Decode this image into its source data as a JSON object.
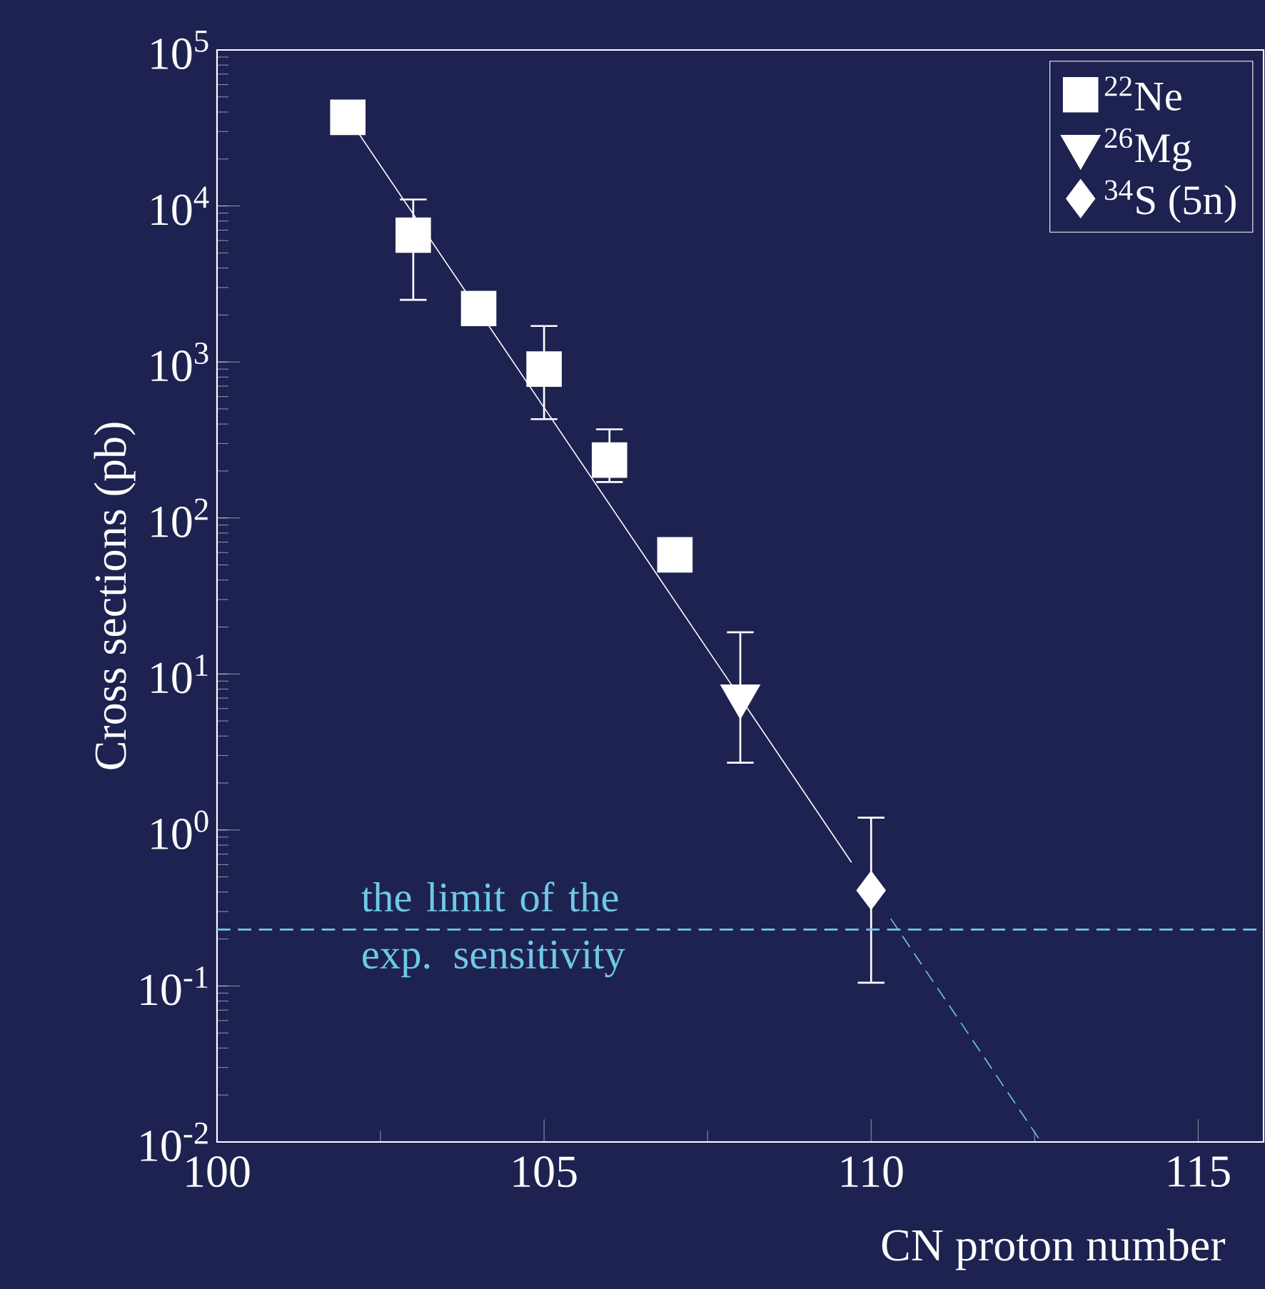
{
  "chart_data": {
    "type": "scatter",
    "xlabel": "CN proton number",
    "ylabel": "Cross sections  (pb)",
    "log": "y",
    "xlim": [
      100,
      116
    ],
    "xticks": [
      100,
      105,
      110,
      115
    ],
    "ylim": [
      0.01,
      100000
    ],
    "yticks": [
      {
        "value": 0.01,
        "label": "10$^{-2}$"
      },
      {
        "value": 0.1,
        "label": "10$^{-1}$"
      },
      {
        "value": 1,
        "label": "10$^{0}$"
      },
      {
        "value": 10,
        "label": "10$^{1}$"
      },
      {
        "value": 100,
        "label": "10$^{2}$"
      },
      {
        "value": 1000,
        "label": "10$^{3}$"
      },
      {
        "value": 10000,
        "label": "10$^{4}$"
      },
      {
        "value": 100000,
        "label": "10$^{5}$"
      }
    ],
    "legend": "top right",
    "grid": false,
    "ref_lines": [
      {
        "axis": "y",
        "value": 0.23,
        "label": "the limit of the exp. sensitivity",
        "color": "#6fc8e8",
        "line_style": "dashed"
      }
    ],
    "series": [
      {
        "name": "$^{22}$Ne",
        "color": "#ffffff",
        "marker": "square",
        "x": [
          102,
          103,
          104,
          105,
          106,
          107
        ],
        "values": [
          37000,
          6500,
          2200,
          900,
          235,
          58
        ],
        "errors": [
          null,
          [
            2500,
            11000
          ],
          null,
          [
            430,
            1700
          ],
          [
            170,
            370
          ],
          null
        ]
      },
      {
        "name": "$^{26}$Mg",
        "color": "#ffffff",
        "marker": "triangle",
        "x": [
          108
        ],
        "values": [
          7.2
        ],
        "errors": [
          [
            2.7,
            18.5
          ]
        ]
      },
      {
        "name": "$^{34}$S (5n)",
        "color": "#ffffff",
        "marker": "diamond",
        "x": [
          110
        ],
        "values": [
          0.41
        ],
        "errors": [
          [
            0.105,
            1.2
          ]
        ]
      },
      {
        "type": "line",
        "color": "#ffffff",
        "marker": "none",
        "line_style": "solid",
        "x": [
          102,
          109.7
        ],
        "values": [
          37000,
          0.62
        ]
      },
      {
        "type": "line",
        "color": "#6fc8e8",
        "marker": "none",
        "line_style": "dashed",
        "x": [
          110.3,
          112.6
        ],
        "values": [
          0.27,
          0.01
        ]
      }
    ]
  }
}
